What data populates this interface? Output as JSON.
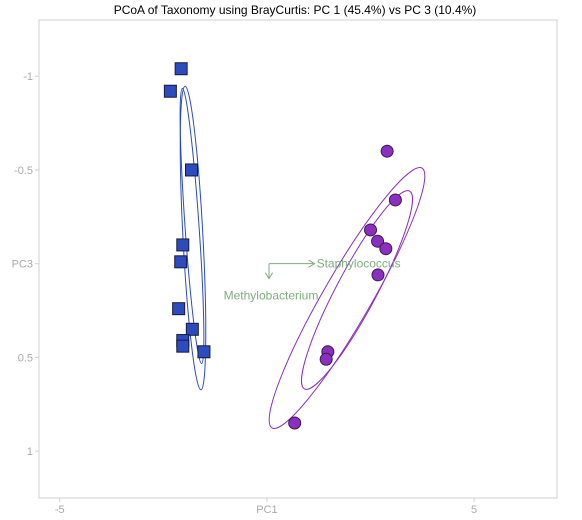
{
  "chart_data": {
    "type": "scatter",
    "title": "PCoA of Taxonomy using BrayCurtis: PC 1 (45.4%) vs PC 3 (10.4%)",
    "xlabel": "PC1",
    "ylabel": "PC3",
    "xlim": [
      -5.5,
      7.0
    ],
    "ylim": [
      -1.3,
      1.25
    ],
    "y_inverted": true,
    "xticks": [
      {
        "value": -5,
        "label": "-5"
      },
      {
        "value": 0,
        "label": "PC1"
      },
      {
        "value": 5,
        "label": "5"
      }
    ],
    "yticks": [
      {
        "value": -1,
        "label": "-1"
      },
      {
        "value": -0.5,
        "label": "-0.5"
      },
      {
        "value": 0,
        "label": "PC3"
      },
      {
        "value": 0.5,
        "label": "0.5"
      },
      {
        "value": 1,
        "label": "1"
      }
    ],
    "grid": false,
    "series": [
      {
        "marker": "square",
        "color": "#2b4bbf",
        "points": [
          {
            "x": -2.07,
            "y": -1.04
          },
          {
            "x": -2.33,
            "y": -0.92
          },
          {
            "x": -1.82,
            "y": -0.5
          },
          {
            "x": -2.03,
            "y": -0.1
          },
          {
            "x": -2.08,
            "y": -0.01
          },
          {
            "x": -2.13,
            "y": 0.24
          },
          {
            "x": -1.8,
            "y": 0.35
          },
          {
            "x": -2.03,
            "y": 0.41
          },
          {
            "x": -2.03,
            "y": 0.44
          },
          {
            "x": -1.52,
            "y": 0.47
          }
        ]
      },
      {
        "marker": "circle",
        "color": "#8a2fbf",
        "points": [
          {
            "x": 2.9,
            "y": -0.6
          },
          {
            "x": 3.1,
            "y": -0.34
          },
          {
            "x": 2.5,
            "y": -0.18
          },
          {
            "x": 2.67,
            "y": -0.12
          },
          {
            "x": 2.87,
            "y": -0.08
          },
          {
            "x": 2.68,
            "y": 0.06
          },
          {
            "x": 1.47,
            "y": 0.47
          },
          {
            "x": 1.43,
            "y": 0.51
          },
          {
            "x": 0.67,
            "y": 0.85
          }
        ]
      }
    ],
    "ellipse_color_1": "#2b4bbf",
    "ellipse_color_2": "#8a2fbf",
    "biplot": {
      "color": "#7fae7f",
      "arrows": [
        {
          "label": "Staphylococcus",
          "x0": 0.05,
          "y0": 0.0,
          "x1": 1.15,
          "y1": 0.0
        },
        {
          "label": "Methylobacterium",
          "x0": 0.05,
          "y0": 0.0,
          "x1": 0.05,
          "y1": 0.08
        }
      ]
    }
  }
}
